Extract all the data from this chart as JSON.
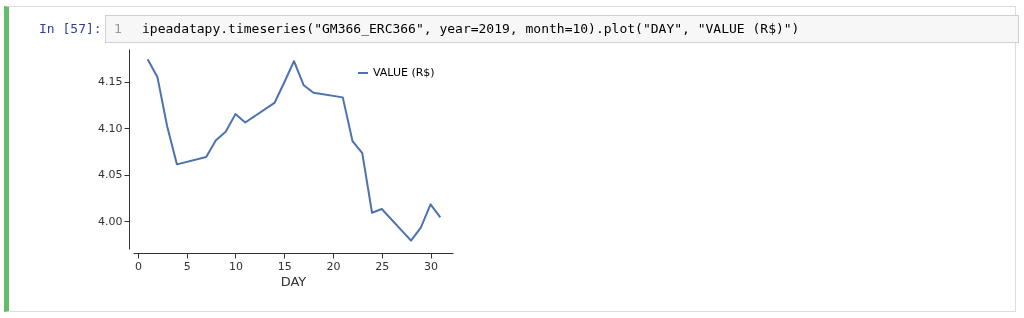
{
  "chart_data": {
    "type": "line",
    "annotations": [
      "In [57]:",
      "1",
      "ipeadatapy.timeseries(\"GM366_ERC366\", year=2019, month=10).plot(\"DAY\", \"VALUE (R$)\")"
    ],
    "xlabel": "DAY",
    "x": [
      1,
      2,
      3,
      4,
      7,
      8,
      9,
      10,
      11,
      14,
      15,
      16,
      17,
      18,
      21,
      22,
      23,
      24,
      25,
      28,
      29,
      30,
      31
    ],
    "series": [
      {
        "name": "VALUE (R$)",
        "color": "#4c72b0",
        "values": [
          4.174,
          4.155,
          4.102,
          4.061,
          4.069,
          4.087,
          4.096,
          4.115,
          4.106,
          4.127,
          4.149,
          4.172,
          4.146,
          4.138,
          4.133,
          4.086,
          4.073,
          4.009,
          4.013,
          3.979,
          3.993,
          4.018,
          4.004
        ]
      }
    ],
    "xlim": [
      -0.5,
      32.3
    ],
    "xticks": [
      0,
      5,
      10,
      15,
      20,
      25,
      30
    ],
    "ylim": [
      3.97,
      4.185
    ],
    "yticks": [
      {
        "value": 4.0,
        "label": "4.00"
      },
      4.05,
      {
        "value": 4.1,
        "label": "4.10"
      },
      4.15
    ],
    "legend": "top right"
  }
}
